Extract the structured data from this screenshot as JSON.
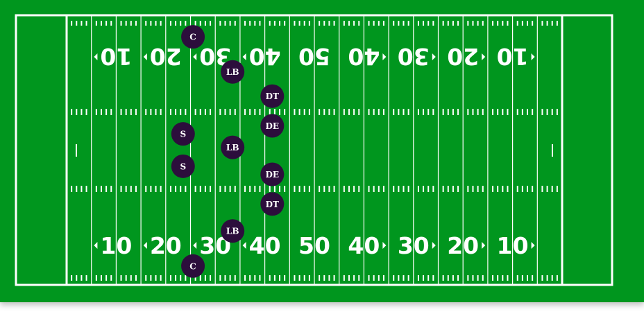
{
  "colors": {
    "grass": "#00961e",
    "lines": "#ffffff",
    "player": "#2c0e3c",
    "player_text": "#ffffff"
  },
  "field": {
    "yard_numbers": [
      "10",
      "20",
      "30",
      "40",
      "50",
      "40",
      "30",
      "20",
      "10"
    ],
    "direction_arrows": [
      "left",
      "left",
      "left",
      "left",
      "none",
      "right",
      "right",
      "right",
      "right"
    ]
  },
  "players": [
    {
      "label": "C",
      "yard_line": 25.5,
      "lateral": 0.08
    },
    {
      "label": "LB",
      "yard_line": 33.5,
      "lateral": 0.21
    },
    {
      "label": "DT",
      "yard_line": 41.5,
      "lateral": 0.3
    },
    {
      "label": "DE",
      "yard_line": 41.5,
      "lateral": 0.41
    },
    {
      "label": "S",
      "yard_line": 23.5,
      "lateral": 0.44
    },
    {
      "label": "LB",
      "yard_line": 33.5,
      "lateral": 0.49
    },
    {
      "label": "S",
      "yard_line": 23.5,
      "lateral": 0.56
    },
    {
      "label": "DE",
      "yard_line": 41.5,
      "lateral": 0.59
    },
    {
      "label": "DT",
      "yard_line": 41.5,
      "lateral": 0.7
    },
    {
      "label": "LB",
      "yard_line": 33.5,
      "lateral": 0.8
    },
    {
      "label": "C",
      "yard_line": 25.5,
      "lateral": 0.93
    }
  ]
}
